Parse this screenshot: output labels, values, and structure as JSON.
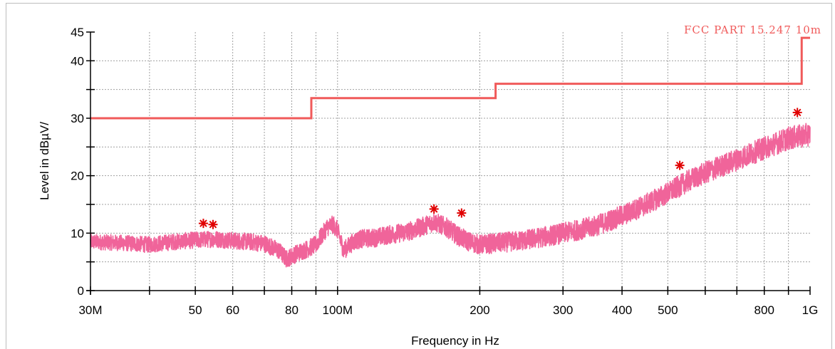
{
  "chart_data": {
    "type": "line",
    "title": "",
    "xlabel": "Frequency in Hz",
    "ylabel": "Level in dBµV/",
    "x_scale": "log",
    "xlim": [
      30000000,
      1000000000
    ],
    "ylim": [
      0,
      45
    ],
    "grid": true,
    "x_tick_labels": [
      {
        "value": 30000000,
        "label": "30M"
      },
      {
        "value": 50000000,
        "label": "50"
      },
      {
        "value": 60000000,
        "label": "60"
      },
      {
        "value": 80000000,
        "label": "80"
      },
      {
        "value": 100000000,
        "label": "100M"
      },
      {
        "value": 200000000,
        "label": "200"
      },
      {
        "value": 300000000,
        "label": "300"
      },
      {
        "value": 400000000,
        "label": "400"
      },
      {
        "value": 500000000,
        "label": "500"
      },
      {
        "value": 800000000,
        "label": "800"
      },
      {
        "value": 1000000000,
        "label": "1G"
      }
    ],
    "x_minor_ticks": [
      40000000,
      70000000,
      90000000,
      600000000,
      700000000,
      900000000
    ],
    "y_tick_labels": [
      {
        "value": 0,
        "label": "0"
      },
      {
        "value": 10,
        "label": "10"
      },
      {
        "value": 20,
        "label": "20"
      },
      {
        "value": 30,
        "label": "30"
      },
      {
        "value": 40,
        "label": "40"
      },
      {
        "value": 45,
        "label": "45"
      }
    ],
    "y_minor_ticks": [
      5,
      15,
      25,
      35
    ],
    "series": [
      {
        "name": "FCC PART 15.247 10m",
        "kind": "limit",
        "color": "#f05a5a",
        "steps": [
          {
            "x0": 30000000,
            "x1": 88000000,
            "y": 30.0
          },
          {
            "x0": 88000000,
            "x1": 216000000,
            "y": 33.5
          },
          {
            "x0": 216000000,
            "x1": 960000000,
            "y": 36.0
          },
          {
            "x0": 960000000,
            "x1": 1000000000,
            "y": 44.0
          }
        ]
      },
      {
        "kind": "measurement",
        "color": "#f0649a",
        "x": [
          30000000,
          35000000,
          40000000,
          45000000,
          50000000,
          55000000,
          60000000,
          65000000,
          70000000,
          75000000,
          78000000,
          82000000,
          86000000,
          90000000,
          95000000,
          98000000,
          100000000,
          103000000,
          108000000,
          112000000,
          120000000,
          130000000,
          140000000,
          150000000,
          160000000,
          170000000,
          180000000,
          190000000,
          200000000,
          220000000,
          250000000,
          280000000,
          300000000,
          350000000,
          400000000,
          450000000,
          500000000,
          550000000,
          600000000,
          700000000,
          800000000,
          900000000,
          1000000000
        ],
        "y": [
          8.5,
          8.3,
          8.0,
          8.5,
          8.8,
          9.0,
          8.7,
          8.5,
          8.2,
          7.0,
          5.5,
          6.5,
          7.2,
          8.0,
          11.0,
          11.5,
          10.5,
          7.0,
          8.5,
          9.0,
          9.2,
          9.8,
          10.2,
          11.0,
          12.0,
          11.0,
          9.5,
          8.5,
          8.0,
          8.3,
          8.8,
          9.5,
          10.0,
          11.2,
          13.0,
          15.0,
          17.0,
          19.0,
          20.5,
          22.8,
          24.8,
          26.5,
          27.2
        ],
        "noise_amplitude": 1.7
      },
      {
        "kind": "peaks",
        "marker": "asterisk",
        "color": "#e00000",
        "x": [
          52000000,
          54500000,
          160000000,
          183000000,
          530000000,
          940000000
        ],
        "y": [
          11.7,
          11.5,
          14.2,
          13.5,
          21.8,
          31.0
        ]
      }
    ]
  }
}
